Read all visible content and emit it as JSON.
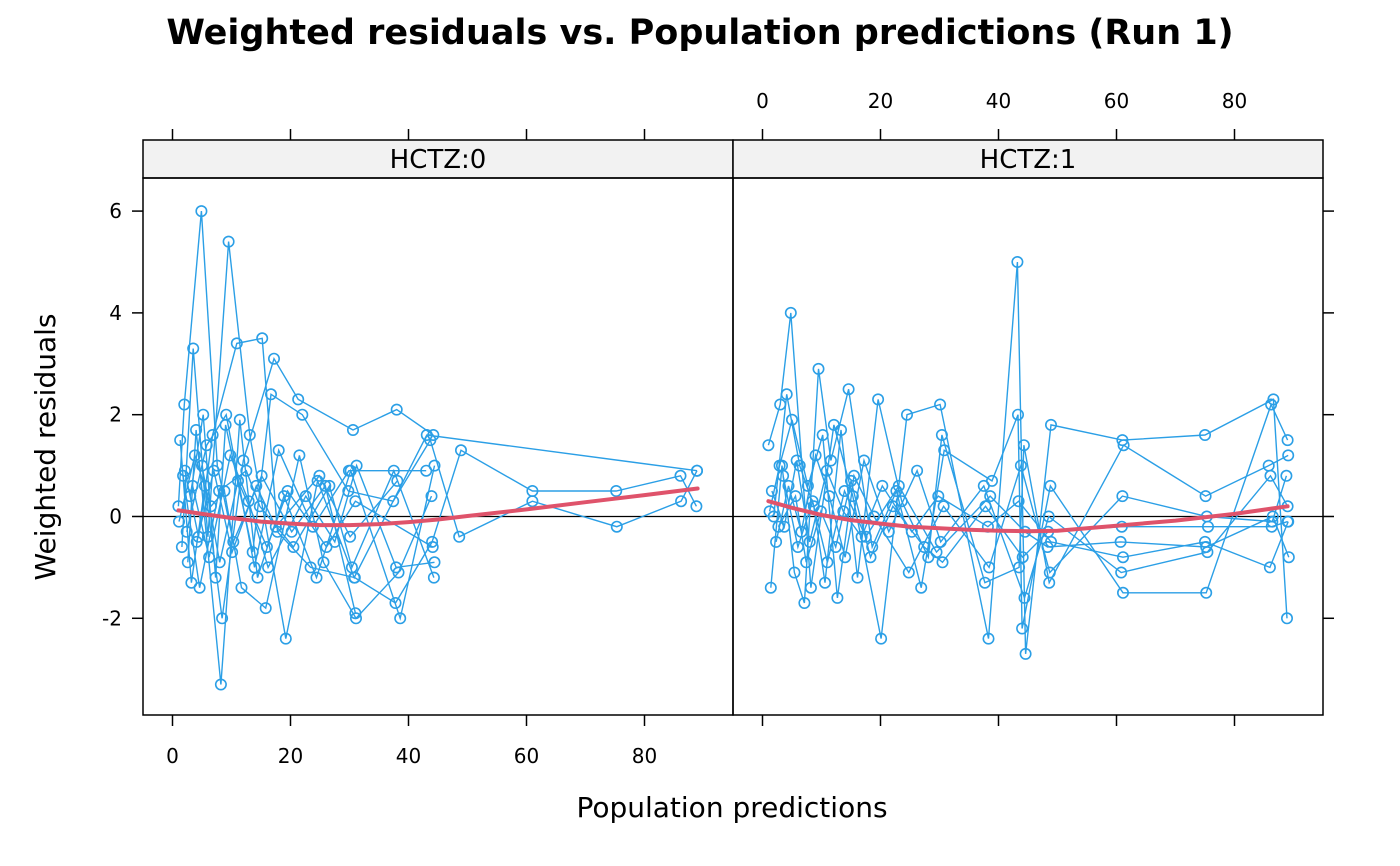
{
  "chart_data": {
    "type": "scatter",
    "title": "Weighted residuals vs. Population predictions (Run 1)",
    "xlabel": "Population predictions",
    "ylabel": "Weighted residuals",
    "xlim": [
      -5,
      95
    ],
    "ylim": [
      -3.9,
      6.65
    ],
    "x_ticks": [
      0,
      20,
      40,
      60,
      80
    ],
    "y_ticks": [
      -2,
      0,
      2,
      4,
      6
    ],
    "reference_line_y": 0,
    "point_color": "#2b9fe6",
    "smooth_color": "#df536b",
    "panels": [
      {
        "strip_label": "HCTZ:0",
        "x_tick_labels_position": "bottom",
        "y_tick_labels_position": "left",
        "subject_series": [
          {
            "x": [
              1.0,
              2.0,
              4.9,
              7.6,
              10.3,
              15.1,
              20.2,
              25.9,
              31.0
            ],
            "y": [
              0.2,
              2.2,
              6.0,
              1.0,
              -0.5,
              0.8,
              -0.3,
              0.6,
              -1.9
            ]
          },
          {
            "x": [
              1.3,
              3.2,
              5.5,
              8.4,
              12.0,
              17.2,
              21.3,
              30.6,
              38.0,
              44.2
            ],
            "y": [
              1.5,
              -1.3,
              0.6,
              -2.0,
              1.1,
              3.1,
              2.3,
              1.7,
              2.1,
              1.6
            ]
          },
          {
            "x": [
              1.6,
              3.5,
              6.0,
              9.5,
              13.1,
              19.2,
              24.6,
              30.8,
              43.1,
              88.9
            ],
            "y": [
              -0.6,
              3.3,
              -0.4,
              5.4,
              1.6,
              -2.4,
              0.7,
              -1.2,
              1.6,
              0.9
            ]
          },
          {
            "x": [
              2.1,
              4.4,
              6.8,
              10.9,
              15.2,
              17.8,
              23.4,
              30.9,
              37.8,
              44.0,
              48.9,
              61.0,
              75.2,
              86.1,
              88.8
            ],
            "y": [
              0.9,
              -0.4,
              1.6,
              3.4,
              3.5,
              -0.3,
              -1.0,
              -1.2,
              -1.7,
              -0.5,
              1.3,
              0.5,
              0.5,
              0.8,
              0.2
            ]
          },
          {
            "x": [
              2.6,
              4.0,
              8.2,
              11.4,
              14.4,
              18.9,
              24.4,
              30.2,
              38.6,
              44.4
            ],
            "y": [
              -0.9,
              1.7,
              -3.3,
              1.9,
              -1.2,
              0.4,
              -1.2,
              0.9,
              -2.0,
              1.0
            ]
          },
          {
            "x": [
              3.0,
              5.2,
              7.3,
              9.0,
              13.6,
              16.7,
              22.0,
              29.8,
              37.4,
              43.7,
              48.6,
              61.0,
              75.3,
              86.2,
              88.9
            ],
            "y": [
              0.4,
              2.0,
              -1.2,
              1.8,
              -0.7,
              2.4,
              2.0,
              0.5,
              0.3,
              1.5,
              -0.4,
              0.3,
              -0.2,
              0.3,
              0.9
            ]
          },
          {
            "x": [
              1.1,
              3.8,
              6.5,
              8.8,
              11.7,
              15.8,
              21.5,
              25.6,
              31.1,
              38.3,
              43.9
            ],
            "y": [
              -0.1,
              1.2,
              0.2,
              0.5,
              -1.4,
              -1.8,
              1.2,
              -0.9,
              -2.0,
              -1.1,
              0.4
            ]
          },
          {
            "x": [
              1.8,
              4.6,
              7.9,
              12.5,
              14.8,
              20.5,
              26.6,
              30.4,
              37.5,
              44.3
            ],
            "y": [
              0.8,
              -1.4,
              0.5,
              0.9,
              0.2,
              -0.6,
              0.6,
              -1.0,
              0.9,
              -1.2
            ]
          },
          {
            "x": [
              2.4,
              5.8,
              9.1,
              13.9,
              18.0,
              23.8,
              29.9,
              43.0
            ],
            "y": [
              -0.3,
              1.4,
              2.0,
              -1.0,
              1.3,
              -0.2,
              0.9,
              0.9
            ]
          },
          {
            "x": [
              3.4,
              6.2,
              9.8,
              12.9,
              16.2,
              22.6,
              27.5,
              31.2,
              37.9,
              44.4
            ],
            "y": [
              0.6,
              -0.8,
              1.2,
              0.3,
              -1.0,
              0.4,
              -0.5,
              1.0,
              -1.0,
              -0.9
            ]
          },
          {
            "x": [
              4.1,
              7.0,
              10.1,
              14.2,
              17.5,
              24.9,
              30.1,
              38.1
            ],
            "y": [
              -0.5,
              0.9,
              -0.7,
              0.6,
              -0.2,
              0.8,
              -0.4,
              0.7
            ]
          },
          {
            "x": [
              5.0,
              8.0,
              11.1,
              16.0,
              19.5,
              26.1,
              31.0,
              44.1
            ],
            "y": [
              1.0,
              -0.9,
              0.7,
              -0.6,
              0.5,
              -0.6,
              0.3,
              -0.6
            ]
          }
        ],
        "smooth_line": {
          "x": [
            1.0,
            5.0,
            10.0,
            15.0,
            20.0,
            25.0,
            30.0,
            35.0,
            40.0,
            45.0,
            50.0,
            60.0,
            70.0,
            80.0,
            89.0
          ],
          "y": [
            0.12,
            0.05,
            -0.03,
            -0.1,
            -0.14,
            -0.17,
            -0.17,
            -0.15,
            -0.11,
            -0.06,
            0.01,
            0.14,
            0.28,
            0.42,
            0.55
          ]
        }
      },
      {
        "strip_label": "HCTZ:1",
        "x_tick_labels_position": "top",
        "y_tick_labels_position": "none",
        "subject_series": [
          {
            "x": [
              1.0,
              3.0,
              4.8,
              8.2,
              12.1,
              15.3,
              20.1,
              24.5,
              30.1,
              38.3,
              43.2,
              44.6,
              48.9,
              61.0,
              75.0,
              86.6,
              88.9
            ],
            "y": [
              1.4,
              2.2,
              4.0,
              -1.4,
              1.8,
              0.4,
              -2.4,
              2.0,
              2.2,
              -2.4,
              5.0,
              -2.7,
              1.8,
              1.5,
              1.6,
              2.3,
              -2.0
            ]
          },
          {
            "x": [
              1.4,
              3.3,
              5.4,
              7.1,
              9.5,
              11.6,
              14.6,
              18.6,
              22.7,
              26.9,
              30.8,
              38.9,
              43.3,
              44.0,
              48.8,
              61.1,
              75.2,
              86.2,
              89.0
            ],
            "y": [
              -1.4,
              1.0,
              -1.1,
              -1.7,
              2.9,
              1.1,
              2.5,
              -0.6,
              0.5,
              -1.4,
              1.3,
              0.7,
              2.0,
              -2.2,
              0.6,
              -1.5,
              -1.5,
              2.2,
              1.5
            ]
          },
          {
            "x": [
              1.9,
              4.1,
              6.3,
              8.7,
              10.6,
              13.3,
              16.1,
              19.6,
              23.6,
              28.1,
              30.4,
              37.7,
              43.5,
              44.3,
              48.6,
              61.2,
              75.1,
              85.8,
              89.1
            ],
            "y": [
              0.0,
              2.4,
              1.0,
              0.2,
              -1.3,
              1.7,
              -1.2,
              2.3,
              0.3,
              -0.8,
              1.6,
              -1.3,
              -1.0,
              1.4,
              -1.3,
              1.4,
              0.4,
              1.0,
              1.2
            ]
          },
          {
            "x": [
              1.2,
              2.9,
              5.0,
              7.7,
              10.2,
              12.7,
              15.5,
              18.9,
              24.8,
              30.7,
              38.4,
              43.8,
              48.7,
              61.0,
              75.3,
              86.4,
              88.8
            ],
            "y": [
              0.1,
              1.0,
              1.9,
              0.6,
              1.6,
              -1.6,
              0.8,
              0.0,
              -1.1,
              0.2,
              -1.0,
              1.0,
              -1.1,
              0.4,
              0.0,
              -0.1,
              0.8
            ]
          },
          {
            "x": [
              2.3,
              4.4,
              6.6,
              9.0,
              11.3,
              14.0,
              17.2,
              21.4,
              26.2,
              30.2,
              37.5,
              44.4,
              48.5,
              60.8,
              75.4,
              86.1,
              89.0
            ],
            "y": [
              -0.5,
              0.6,
              -0.3,
              1.2,
              0.4,
              -0.8,
              1.1,
              -0.3,
              0.9,
              -0.5,
              0.6,
              -1.6,
              0.0,
              -1.1,
              -0.7,
              0.8,
              0.2
            ]
          },
          {
            "x": [
              1.6,
              3.7,
              5.8,
              8.0,
              10.9,
              13.7,
              16.8,
              20.3,
              25.3,
              29.8,
              38.2,
              43.4,
              48.9,
              61.1,
              75.0,
              86.0,
              89.1
            ],
            "y": [
              0.5,
              -0.2,
              1.1,
              -0.5,
              0.9,
              0.1,
              -0.4,
              0.6,
              -0.3,
              0.4,
              -0.2,
              0.3,
              -0.5,
              -0.8,
              -0.5,
              -1.0,
              -0.1
            ]
          },
          {
            "x": [
              2.7,
              5.6,
              7.4,
              9.9,
              12.4,
              15.0,
              18.3,
              22.1,
              27.4,
              30.5,
              37.8,
              44.1,
              48.4,
              60.9,
              75.5,
              86.3,
              89.0
            ],
            "y": [
              -0.2,
              0.4,
              -0.9,
              0.1,
              -0.6,
              0.7,
              -0.8,
              0.2,
              -0.6,
              -0.9,
              0.2,
              -0.8,
              -0.3,
              -0.2,
              -0.2,
              -0.2,
              -0.1
            ]
          },
          {
            "x": [
              3.5,
              6.0,
              8.5,
              11.0,
              13.9,
              17.5,
              23.1,
              29.5,
              38.6,
              44.5,
              48.3,
              60.7,
              75.2,
              86.5,
              89.2
            ],
            "y": [
              0.8,
              -0.6,
              0.3,
              -0.9,
              0.5,
              -0.4,
              0.6,
              -0.7,
              0.4,
              -0.3,
              -0.6,
              -0.5,
              -0.6,
              0.0,
              -0.8
            ]
          }
        ],
        "smooth_line": {
          "x": [
            1.0,
            5.0,
            10.0,
            15.0,
            20.0,
            25.0,
            30.0,
            35.0,
            40.0,
            45.0,
            50.0,
            60.0,
            70.0,
            80.0,
            89.0
          ],
          "y": [
            0.3,
            0.17,
            0.03,
            -0.07,
            -0.14,
            -0.2,
            -0.23,
            -0.26,
            -0.28,
            -0.29,
            -0.28,
            -0.18,
            -0.08,
            0.05,
            0.2
          ]
        }
      }
    ]
  }
}
